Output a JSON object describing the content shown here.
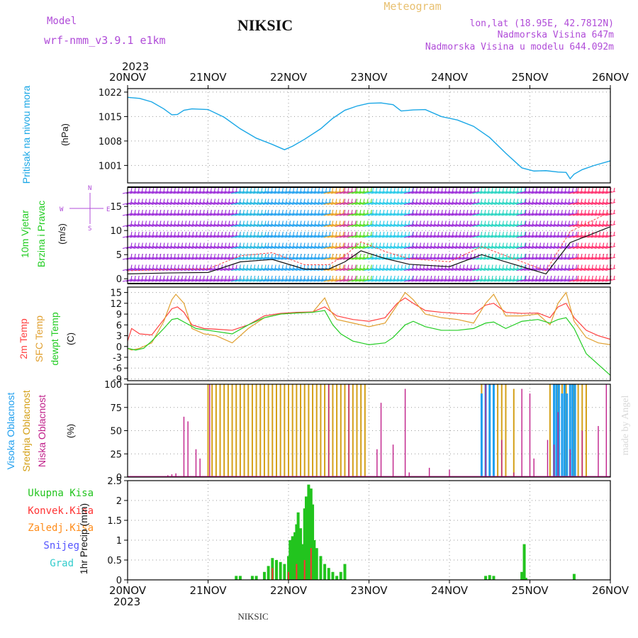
{
  "header": {
    "model_label": "Model",
    "model_name": "wrf-nmm_v3.9.1  e1km",
    "station_title": "NIKSIC",
    "product_title": "Meteogram",
    "location": "lon,lat (18.95E, 42.7812N)",
    "elevation": "Nadmorska Visina 647m",
    "model_elevation": "Nadmorska Visina u modelu 644.092m",
    "watermark": "made by Angel",
    "footer_station": "NIKSIC"
  },
  "time_axis": {
    "year": "2023",
    "ticks": [
      "20NOV",
      "21NOV",
      "22NOV",
      "23NOV",
      "24NOV",
      "25NOV",
      "26NOV"
    ]
  },
  "colors": {
    "pressure": "#1aa7e6",
    "temp2m": "#ff4040",
    "sfc": "#e0a030",
    "dewpt": "#22cc22",
    "high_cloud": "#1e9fef",
    "mid_cloud": "#d4a017",
    "low_cloud": "#c0208a",
    "total_precip": "#22c41e",
    "conv_precip": "#ff3333",
    "frozen": "#ff8c1a",
    "snow": "#5555ff",
    "hail": "#33cccc"
  },
  "chart_data": [
    {
      "type": "line",
      "ylabel": "Pritisak na nivou mora",
      "units": "(hPa)",
      "ylim": [
        996,
        1023
      ],
      "yticks": [
        "1022",
        "1015",
        "1008",
        "1001"
      ],
      "x_days": [
        0,
        0.15,
        0.3,
        0.45,
        0.55,
        0.62,
        0.7,
        0.8,
        1.0,
        1.2,
        1.4,
        1.6,
        1.8,
        1.95,
        2.05,
        2.2,
        2.4,
        2.55,
        2.7,
        2.85,
        3.0,
        3.15,
        3.3,
        3.4,
        3.55,
        3.7,
        3.9,
        4.1,
        4.3,
        4.5,
        4.7,
        4.9,
        5.05,
        5.2,
        5.35,
        5.45,
        5.5,
        5.55,
        5.65,
        5.8,
        6.0
      ],
      "y": [
        1020.5,
        1020.2,
        1019.2,
        1017.2,
        1015.5,
        1015.6,
        1016.8,
        1017.2,
        1017.0,
        1014.8,
        1011.5,
        1008.8,
        1007.0,
        1005.5,
        1006.5,
        1008.5,
        1011.5,
        1014.5,
        1016.8,
        1018.0,
        1018.8,
        1018.9,
        1018.4,
        1016.6,
        1016.9,
        1017.0,
        1015.0,
        1014.0,
        1012.2,
        1009.0,
        1004.5,
        1000.3,
        999.4,
        999.5,
        999.1,
        999.0,
        997.2,
        998.5,
        999.8,
        1001.0,
        1002.3
      ],
      "grid": true
    },
    {
      "type": "wind_barbs",
      "ylabel": "10m Vjetar Brzina i Pravac",
      "units": "(m/s)",
      "ylim": [
        -1,
        19
      ],
      "yticks": [
        "15",
        "10",
        "5",
        "0"
      ],
      "compass": {
        "n": "N",
        "s": "S",
        "e": "E",
        "w": "W"
      },
      "x_days": [
        0,
        0.5,
        1.0,
        1.4,
        1.8,
        2.2,
        2.5,
        2.7,
        2.9,
        3.2,
        3.5,
        4.0,
        4.4,
        4.8,
        5.2,
        5.5,
        6.0
      ],
      "speed": [
        1,
        1.2,
        1.3,
        3.5,
        4.0,
        2.0,
        2.0,
        3.5,
        5.8,
        4.2,
        3.0,
        2.5,
        5.0,
        3.0,
        1.0,
        7.5,
        10.8
      ],
      "grid": true
    },
    {
      "type": "line",
      "ylabel": "2m Temp / SFC Temp / dewpt Temp",
      "units": "(C)",
      "ylim": [
        -9.5,
        16.5
      ],
      "yticks": [
        "15",
        "12",
        "9",
        "6",
        "3",
        "0",
        "-3",
        "-6",
        "-9"
      ],
      "series": [
        {
          "name": "2m Temp",
          "x_days": [
            0,
            0.05,
            0.15,
            0.3,
            0.45,
            0.55,
            0.62,
            0.7,
            0.8,
            0.95,
            1.1,
            1.3,
            1.5,
            1.7,
            1.9,
            2.1,
            2.3,
            2.45,
            2.52,
            2.6,
            2.8,
            3.0,
            3.2,
            3.35,
            3.45,
            3.55,
            3.7,
            3.9,
            4.1,
            4.3,
            4.45,
            4.55,
            4.7,
            4.9,
            5.1,
            5.25,
            5.35,
            5.45,
            5.55,
            5.7,
            5.85,
            6.0
          ],
          "y": [
            1.5,
            5.0,
            3.5,
            3.2,
            7.5,
            10.5,
            11.0,
            9.5,
            6.0,
            5.0,
            4.8,
            4.5,
            6.0,
            8.5,
            9.2,
            9.5,
            9.6,
            11.0,
            9.8,
            8.5,
            7.5,
            7.0,
            8.0,
            12.0,
            13.5,
            12.0,
            10.0,
            9.5,
            9.2,
            9.0,
            11.5,
            12.0,
            9.5,
            9.2,
            9.3,
            8.0,
            11.0,
            12.0,
            8.0,
            4.5,
            3.0,
            2.0
          ]
        },
        {
          "name": "SFC Temp",
          "x_days": [
            0,
            0.05,
            0.15,
            0.3,
            0.45,
            0.55,
            0.6,
            0.7,
            0.8,
            0.95,
            1.1,
            1.3,
            1.5,
            1.7,
            1.9,
            2.1,
            2.3,
            2.45,
            2.52,
            2.6,
            2.8,
            3.0,
            3.2,
            3.35,
            3.45,
            3.55,
            3.7,
            3.9,
            4.1,
            4.3,
            4.45,
            4.55,
            4.7,
            4.9,
            5.1,
            5.25,
            5.35,
            5.45,
            5.55,
            5.7,
            5.85,
            6.0
          ],
          "y": [
            -0.5,
            -1.0,
            -0.5,
            1.0,
            7.0,
            13.0,
            14.5,
            12.0,
            5.0,
            3.5,
            3.0,
            1.0,
            5.0,
            8.0,
            9.0,
            9.3,
            9.5,
            13.5,
            10.0,
            7.5,
            6.5,
            5.5,
            6.5,
            11.5,
            15.0,
            13.0,
            9.0,
            8.0,
            7.5,
            6.5,
            12.0,
            14.5,
            8.5,
            8.5,
            9.0,
            6.0,
            12.0,
            15.0,
            7.0,
            2.5,
            1.0,
            0.5
          ]
        },
        {
          "name": "dewpt Temp",
          "x_days": [
            0,
            0.1,
            0.2,
            0.3,
            0.45,
            0.55,
            0.62,
            0.7,
            0.85,
            1.0,
            1.3,
            1.5,
            1.7,
            1.9,
            2.1,
            2.3,
            2.45,
            2.55,
            2.65,
            2.8,
            3.0,
            3.2,
            3.3,
            3.45,
            3.55,
            3.7,
            3.9,
            4.1,
            4.3,
            4.45,
            4.55,
            4.7,
            4.9,
            5.1,
            5.25,
            5.35,
            5.45,
            5.55,
            5.7,
            5.85,
            6.0
          ],
          "y": [
            -0.5,
            -1.0,
            -0.5,
            1.5,
            5.0,
            7.5,
            7.8,
            6.8,
            5.0,
            4.5,
            3.5,
            6.0,
            8.0,
            9.0,
            9.3,
            9.5,
            10.0,
            6.0,
            3.5,
            1.5,
            0.5,
            1.0,
            2.5,
            6.0,
            7.0,
            5.5,
            4.5,
            4.5,
            5.0,
            6.5,
            6.8,
            5.0,
            7.0,
            7.5,
            6.5,
            7.5,
            8.0,
            5.0,
            -2.0,
            -5.0,
            -8.0
          ]
        }
      ],
      "grid": true
    },
    {
      "type": "bar",
      "ylabel": "Visoka Oblacnost / Srednja Oblacnost / Niska Oblacnost",
      "units": "(%)",
      "ylim": [
        0,
        100
      ],
      "yticks": [
        "100",
        "75",
        "50",
        "25",
        "0"
      ],
      "series": [
        {
          "name": "Visoka Oblacnost",
          "x_days": [
            4.4,
            4.45,
            4.5,
            4.55,
            5.3,
            5.33,
            5.36,
            5.4,
            5.43,
            5.46,
            5.5,
            5.53,
            5.56
          ],
          "values": [
            90,
            100,
            100,
            100,
            100,
            100,
            100,
            90,
            100,
            90,
            100,
            100,
            100
          ]
        },
        {
          "name": "Srednja Oblacnost",
          "x_days": [
            1.0,
            1.05,
            1.1,
            1.15,
            1.2,
            1.25,
            1.3,
            1.35,
            1.4,
            1.45,
            1.5,
            1.55,
            1.6,
            1.65,
            1.7,
            1.75,
            1.8,
            1.85,
            1.9,
            1.95,
            2.0,
            2.05,
            2.1,
            2.15,
            2.2,
            2.25,
            2.3,
            2.35,
            2.4,
            2.45,
            2.5,
            2.55,
            2.6,
            2.65,
            2.7,
            2.75,
            2.8,
            2.85,
            2.9,
            2.95,
            4.4,
            4.45,
            4.5,
            4.55,
            4.6,
            4.65,
            4.7,
            4.8,
            5.25,
            5.3,
            5.35,
            5.4,
            5.45,
            5.5,
            5.55,
            5.6,
            5.65,
            5.7
          ],
          "values": [
            100,
            100,
            100,
            100,
            100,
            100,
            100,
            100,
            100,
            100,
            100,
            100,
            100,
            100,
            100,
            100,
            100,
            100,
            100,
            100,
            100,
            100,
            100,
            100,
            100,
            100,
            100,
            100,
            100,
            100,
            100,
            100,
            100,
            100,
            100,
            100,
            100,
            100,
            100,
            100,
            100,
            100,
            100,
            100,
            100,
            100,
            100,
            95,
            100,
            100,
            100,
            100,
            100,
            100,
            100,
            100,
            100,
            100
          ]
        },
        {
          "name": "Niska Oblacnost",
          "x_days": [
            0.5,
            0.55,
            0.6,
            0.7,
            0.75,
            0.85,
            0.9,
            1.02,
            2.5,
            2.75,
            3.1,
            3.15,
            3.3,
            3.45,
            3.5,
            3.75,
            4.0,
            4.45,
            4.65,
            4.8,
            4.9,
            5.0,
            5.05,
            5.22,
            5.3,
            5.35,
            5.5,
            5.65,
            5.85,
            5.95
          ],
          "values": [
            2,
            3,
            4,
            65,
            60,
            30,
            20,
            100,
            100,
            100,
            30,
            80,
            35,
            95,
            5,
            10,
            8,
            100,
            40,
            5,
            95,
            90,
            20,
            40,
            35,
            70,
            30,
            50,
            55,
            100
          ]
        }
      ],
      "grid": true
    },
    {
      "type": "bar",
      "ylabel": "1hr Precip",
      "units": "(mm)",
      "ylim": [
        0,
        2.5
      ],
      "yticks": [
        "2.5",
        "2",
        "1.5",
        "1",
        "0.5",
        "0"
      ],
      "series": [
        {
          "name": "Ukupna Kisa",
          "x_days": [
            1.35,
            1.4,
            1.55,
            1.6,
            1.7,
            1.75,
            1.8,
            1.85,
            1.9,
            1.95,
            2.0,
            2.02,
            2.05,
            2.08,
            2.1,
            2.12,
            2.15,
            2.18,
            2.2,
            2.22,
            2.25,
            2.28,
            2.3,
            2.32,
            2.35,
            2.4,
            2.45,
            2.5,
            2.55,
            2.6,
            2.65,
            2.7,
            4.45,
            4.5,
            4.55,
            4.9,
            4.93,
            4.95,
            5.55
          ],
          "values": [
            0.1,
            0.1,
            0.1,
            0.1,
            0.2,
            0.35,
            0.55,
            0.5,
            0.45,
            0.4,
            0.6,
            1.0,
            1.1,
            1.2,
            1.4,
            1.7,
            1.3,
            0.9,
            1.8,
            2.1,
            2.4,
            2.3,
            1.9,
            1.0,
            0.8,
            0.6,
            0.4,
            0.3,
            0.2,
            0.1,
            0.2,
            0.4,
            0.1,
            0.12,
            0.1,
            0.2,
            0.9,
            0.05,
            0.15
          ]
        },
        {
          "name": "Konvek.Kisa",
          "x_days": [
            1.8,
            2.0,
            2.1,
            2.2,
            2.28
          ],
          "values": [
            0.3,
            0.2,
            0.4,
            0.5,
            0.8
          ]
        }
      ],
      "legend": [
        "Ukupna Kisa",
        "Konvek.Kisa",
        "Zaledj.Kisa",
        "Snijeg",
        "Grad"
      ],
      "grid": true
    }
  ]
}
